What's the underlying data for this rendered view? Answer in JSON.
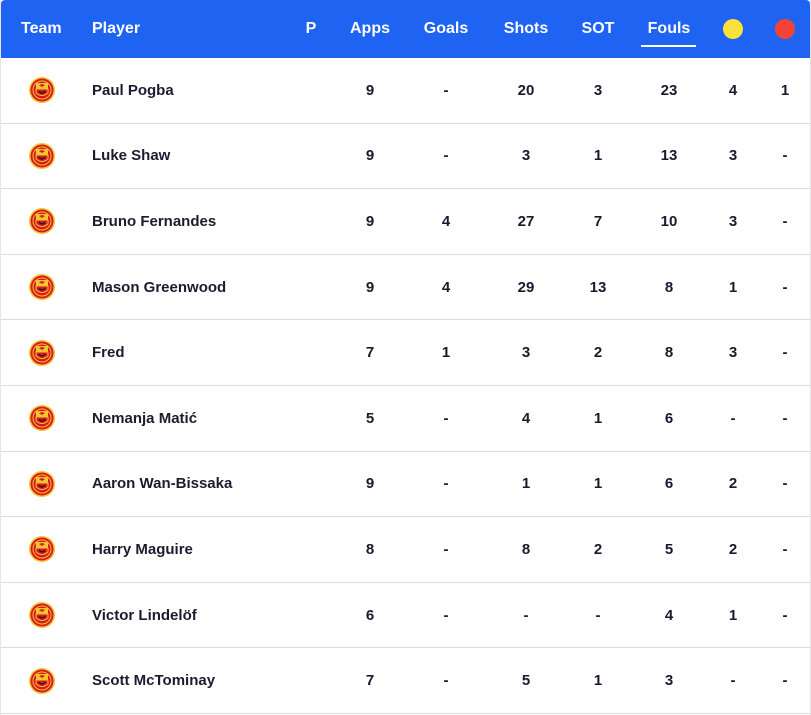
{
  "table": {
    "columns": {
      "team": "Team",
      "player": "Player",
      "p": "P",
      "apps": "Apps",
      "goals": "Goals",
      "shots": "Shots",
      "sot": "SOT",
      "fouls": "Fouls"
    },
    "active_sort_column": "Fouls",
    "yellow_card_color": "#fde13a",
    "red_card_color": "#f44336",
    "header_color": "#1f63f2",
    "team_icon": "manchester-united-crest-icon",
    "rows": [
      {
        "player": "Paul Pogba",
        "apps": "9",
        "goals": "-",
        "shots": "20",
        "sot": "3",
        "fouls": "23",
        "yellow": "4",
        "red": "1"
      },
      {
        "player": "Luke Shaw",
        "apps": "9",
        "goals": "-",
        "shots": "3",
        "sot": "1",
        "fouls": "13",
        "yellow": "3",
        "red": "-"
      },
      {
        "player": "Bruno Fernandes",
        "apps": "9",
        "goals": "4",
        "shots": "27",
        "sot": "7",
        "fouls": "10",
        "yellow": "3",
        "red": "-"
      },
      {
        "player": "Mason Greenwood",
        "apps": "9",
        "goals": "4",
        "shots": "29",
        "sot": "13",
        "fouls": "8",
        "yellow": "1",
        "red": "-"
      },
      {
        "player": "Fred",
        "apps": "7",
        "goals": "1",
        "shots": "3",
        "sot": "2",
        "fouls": "8",
        "yellow": "3",
        "red": "-"
      },
      {
        "player": "Nemanja Matić",
        "apps": "5",
        "goals": "-",
        "shots": "4",
        "sot": "1",
        "fouls": "6",
        "yellow": "-",
        "red": "-"
      },
      {
        "player": "Aaron Wan-Bissaka",
        "apps": "9",
        "goals": "-",
        "shots": "1",
        "sot": "1",
        "fouls": "6",
        "yellow": "2",
        "red": "-"
      },
      {
        "player": "Harry Maguire",
        "apps": "8",
        "goals": "-",
        "shots": "8",
        "sot": "2",
        "fouls": "5",
        "yellow": "2",
        "red": "-"
      },
      {
        "player": "Victor Lindelöf",
        "apps": "6",
        "goals": "-",
        "shots": "-",
        "sot": "-",
        "fouls": "4",
        "yellow": "1",
        "red": "-"
      },
      {
        "player": "Scott McTominay",
        "apps": "7",
        "goals": "-",
        "shots": "5",
        "sot": "1",
        "fouls": "3",
        "yellow": "-",
        "red": "-"
      }
    ]
  }
}
